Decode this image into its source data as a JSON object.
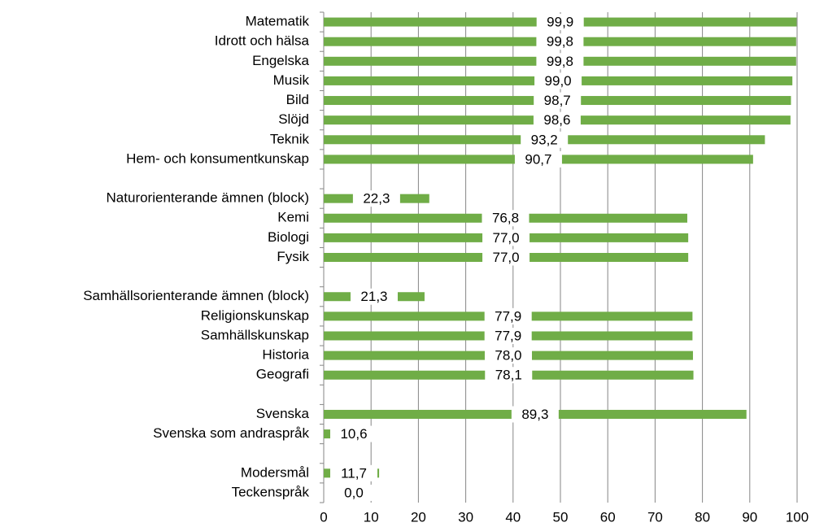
{
  "chart_data": {
    "type": "bar",
    "orientation": "horizontal",
    "categories": [
      "Matematik",
      "Idrott och hälsa",
      "Engelska",
      "Musik",
      "Bild",
      "Slöjd",
      "Teknik",
      "Hem- och konsumentkunskap",
      null,
      "Naturorienterande ämnen (block)",
      "Kemi",
      "Biologi",
      "Fysik",
      null,
      "Samhällsorienterande ämnen (block)",
      "Religionskunskap",
      "Samhällskunskap",
      "Historia",
      "Geografi",
      null,
      "Svenska",
      "Svenska som andraspråk",
      null,
      "Modersmål",
      "Teckenspråk"
    ],
    "values": [
      99.9,
      99.8,
      99.8,
      99.0,
      98.7,
      98.6,
      93.2,
      90.7,
      null,
      22.3,
      76.8,
      77.0,
      77.0,
      null,
      21.3,
      77.9,
      77.9,
      78.0,
      78.1,
      null,
      89.3,
      10.6,
      null,
      11.7,
      0.0
    ],
    "value_labels": [
      "99,9",
      "99,8",
      "99,8",
      "99,0",
      "98,7",
      "98,6",
      "93,2",
      "90,7",
      null,
      "22,3",
      "76,8",
      "77,0",
      "77,0",
      null,
      "21,3",
      "77,9",
      "77,9",
      "78,0",
      "78,1",
      null,
      "89,3",
      "10,6",
      null,
      "11,7",
      "0,0"
    ],
    "color": "#70ad47",
    "xlim": [
      0,
      100
    ],
    "xticks": [
      0,
      10,
      20,
      30,
      40,
      50,
      60,
      70,
      80,
      90,
      100
    ],
    "grid": true
  }
}
